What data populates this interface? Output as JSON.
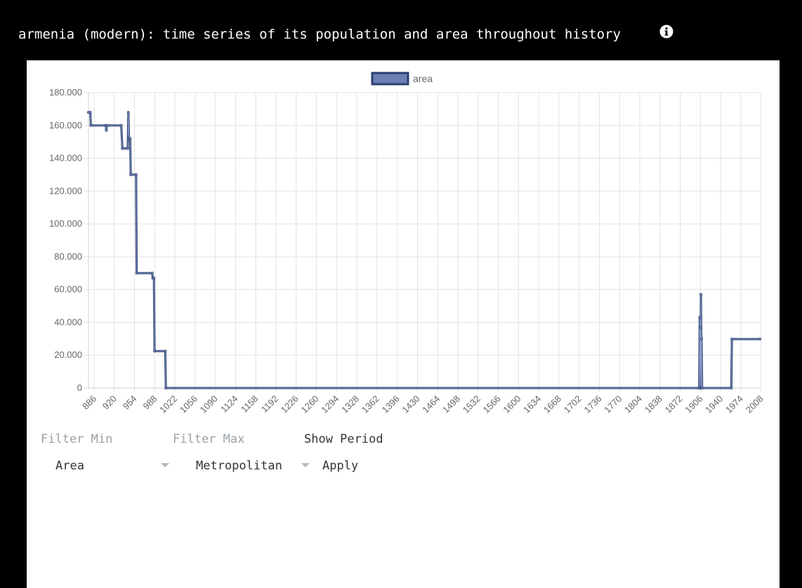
{
  "header": {
    "title": "armenia (modern): time series of its population and area throughout history",
    "info_icon": "info-icon"
  },
  "controls": {
    "filter_min_label": "Filter Min",
    "filter_max_label": "Filter Max",
    "show_period_label": "Show Period",
    "field_select_value": "Area",
    "scope_select_value": "Metropolitan",
    "apply_label": "Apply"
  },
  "colors": {
    "line": "#2a3f6e",
    "legend_fill": "#6c7fb5",
    "point": "#8a9acb",
    "grid": "#e3e3e3"
  },
  "chart_data": {
    "type": "line",
    "title": "",
    "xlabel": "",
    "ylabel": "",
    "legend": {
      "position": "top-center",
      "entries": [
        "area"
      ]
    },
    "grid": true,
    "xlim": [
      886,
      2014
    ],
    "ylim": [
      0,
      180000
    ],
    "x_ticks": [
      "886",
      "920",
      "954",
      "988",
      "1022",
      "1056",
      "1090",
      "1124",
      "1158",
      "1192",
      "1226",
      "1260",
      "1294",
      "1328",
      "1362",
      "1396",
      "1430",
      "1464",
      "1498",
      "1532",
      "1566",
      "1600",
      "1634",
      "1668",
      "1702",
      "1736",
      "1770",
      "1804",
      "1838",
      "1872",
      "1906",
      "1940",
      "1974",
      "2008"
    ],
    "y_ticks": [
      "0",
      "20.000",
      "40.000",
      "60.000",
      "80.000",
      "100.000",
      "120.000",
      "140.000",
      "160.000",
      "180.000"
    ],
    "series": [
      {
        "name": "area",
        "points": [
          [
            886,
            168000
          ],
          [
            889,
            168000
          ],
          [
            890,
            160000
          ],
          [
            915,
            160000
          ],
          [
            916,
            157000
          ],
          [
            917,
            160000
          ],
          [
            941,
            160000
          ],
          [
            943,
            146000
          ],
          [
            952,
            146000
          ],
          [
            953,
            168000
          ],
          [
            954,
            152000
          ],
          [
            956,
            152000
          ],
          [
            957,
            130000
          ],
          [
            966,
            130000
          ],
          [
            967,
            70000
          ],
          [
            993,
            70000
          ],
          [
            994,
            67000
          ],
          [
            996,
            67000
          ],
          [
            997,
            22500
          ],
          [
            1015,
            22500
          ],
          [
            1016,
            0
          ],
          [
            1912,
            0
          ],
          [
            1913,
            43000
          ],
          [
            1914,
            0
          ],
          [
            1915,
            57000
          ],
          [
            1916,
            0
          ],
          [
            1915,
            37000
          ],
          [
            1916,
            30000
          ],
          [
            1917,
            0
          ],
          [
            1966,
            0
          ],
          [
            1967,
            29800
          ],
          [
            2014,
            29800
          ]
        ]
      }
    ]
  }
}
